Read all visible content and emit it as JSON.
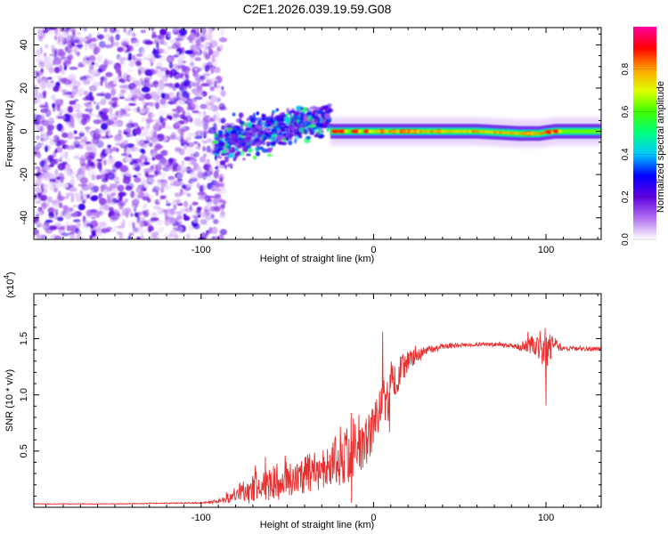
{
  "figure": {
    "title": "C2E1.2026.039.19.59.G08"
  },
  "chart_data": [
    {
      "type": "heatmap",
      "title": "C2E1.2026.039.19.59.G08",
      "xlabel": "Height of straight line (km)",
      "ylabel": "Frequency (Hz)",
      "xlim": [
        -197,
        132
      ],
      "ylim": [
        -50,
        48
      ],
      "xticks": [
        -100,
        0,
        100
      ],
      "xtick_labels": [
        "-100",
        "0",
        "100"
      ],
      "yticks": [
        -40,
        -20,
        0,
        20,
        40
      ],
      "ytick_labels": [
        "-40",
        "-20",
        "0",
        "20",
        "40"
      ],
      "colorbar": {
        "label": "Normalized spectral amplitude",
        "range": [
          0,
          1
        ],
        "ticks": [
          0.0,
          0.2,
          0.4,
          0.6,
          0.8
        ],
        "tick_labels": [
          "0.0",
          "0.2",
          "0.4",
          "0.6",
          "0.8"
        ],
        "colors": [
          "#ffffff",
          "#b070f0",
          "#6000e0",
          "#0000ff",
          "#00c8ff",
          "#00ff80",
          "#40ff00",
          "#e0ff00",
          "#ffa000",
          "#ff0000",
          "#ff00a0"
        ]
      },
      "regions": [
        {
          "name": "noise",
          "x_range": [
            -197,
            -93
          ],
          "y_range": [
            -50,
            48
          ],
          "level": 0.15
        },
        {
          "name": "transition",
          "x_range": [
            -92,
            -25
          ],
          "y_range": [
            -15,
            12
          ],
          "level": 0.35
        },
        {
          "name": "carrier",
          "x_range": [
            -25,
            132
          ],
          "center_y": 0,
          "width_hz": 3,
          "level": 0.85
        }
      ],
      "carrier_center_hz": [
        {
          "x": -25,
          "y": 0
        },
        {
          "x": 60,
          "y": 0
        },
        {
          "x": 85,
          "y": -1
        },
        {
          "x": 96,
          "y": -1
        },
        {
          "x": 105,
          "y": 0
        },
        {
          "x": 132,
          "y": 0
        }
      ]
    },
    {
      "type": "line",
      "xlabel": "Height of straight line (km)",
      "ylabel": "SNR (10 * v/v)",
      "y_multiplier": "(x10",
      "y_multiplier_exp": "4",
      "xlim": [
        -197,
        132
      ],
      "ylim": [
        0,
        19000
      ],
      "xticks": [
        -100,
        0,
        100
      ],
      "xtick_labels": [
        "-100",
        "0",
        "100"
      ],
      "yticks": [
        5000,
        10000,
        15000
      ],
      "ytick_labels": [
        "0.5",
        "1.0",
        "1.5"
      ],
      "series": [
        {
          "name": "SNR",
          "color": "#e83030",
          "envelope_x": [
            -197,
            -150,
            -100,
            -90,
            -85,
            -80,
            -70,
            -60,
            -50,
            -40,
            -30,
            -20,
            -10,
            -5,
            0,
            5,
            10,
            15,
            20,
            25,
            30,
            40,
            50,
            60,
            80,
            90,
            95,
            100,
            105,
            110,
            120,
            132
          ],
          "envelope_y": [
            300,
            300,
            400,
            500,
            800,
            1100,
            1600,
            2100,
            2500,
            2900,
            3300,
            4300,
            5000,
            5600,
            7000,
            9000,
            11000,
            12000,
            13000,
            13500,
            13900,
            14300,
            14400,
            14500,
            14400,
            14300,
            14500,
            14000,
            14300,
            14200,
            14100,
            14100
          ],
          "noise_amp_y": [
            30,
            30,
            60,
            150,
            400,
            700,
            1300,
            1600,
            1700,
            1700,
            2000,
            2500,
            2400,
            2200,
            2000,
            2200,
            2000,
            1500,
            900,
            700,
            400,
            250,
            200,
            150,
            200,
            700,
            1500,
            2000,
            600,
            250,
            200,
            200
          ]
        }
      ]
    }
  ]
}
